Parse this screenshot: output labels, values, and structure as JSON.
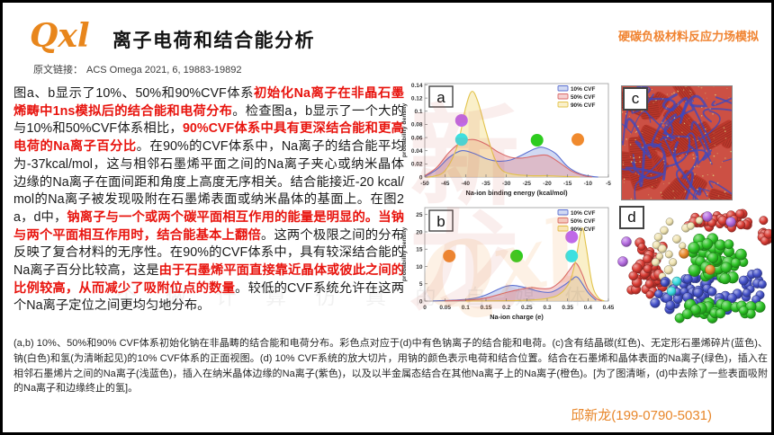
{
  "page": {
    "logo": "Qxl",
    "title": "离子电荷和结合能分析",
    "header_right": "硬碳负极材料反应力场模拟",
    "source_label": "原文链接：",
    "source_value": "ACS Omega 2021, 6, 19883-19892",
    "footer": "邱新龙(199-0790-5031)"
  },
  "watermarks": {
    "stamp": "新\n龙",
    "script": "Qxl",
    "row": "个 做 计 算 仿 真 的 自 媒 体"
  },
  "colors": {
    "brand_orange": "#E8861C",
    "footer_orange": "#E8872B",
    "highlight_red": "#E8140E"
  },
  "body_paragraph": {
    "segments": [
      {
        "red": false,
        "text": "图a、b显示了10%、50%和90%CVF体系"
      },
      {
        "red": true,
        "text": "初始化Na离子在非晶石墨烯畴中1ns模拟后的结合能和电荷分布"
      },
      {
        "red": false,
        "text": "。检查图a，b显示了一个大的与10%和50%CVF体系相比，"
      },
      {
        "red": true,
        "text": "90%CVF体系中具有更深结合能和更高电荷的Na离子百分比"
      },
      {
        "red": false,
        "text": "。在90%的CVF体系中，Na离子的结合能平均为-37kcal/mol，这与相邻石墨烯平面之间的Na离子夹心或纳米晶体边缘的Na离子在面间距和角度上高度无序相关。结合能接近-20 kcal/mol的Na离子被发现吸附在石墨烯表面或纳米晶体的基面上。在图2a，d中，"
      },
      {
        "red": true,
        "text": "钠离子与一个或两个碳平面相互作用的能量是明显的。当钠与两个平面相互作用时，结合能基本上翻倍"
      },
      {
        "red": false,
        "text": "。这两个极限之间的分布反映了复合材料的无序性。在90%的CVF体系中，具有较深结合能的Na离子百分比较高，这是"
      },
      {
        "red": true,
        "text": "由于石墨烯平面直接靠近晶体或彼此之间的比例较高，从而减少了吸附位点的数量"
      },
      {
        "red": false,
        "text": "。较低的CVF系统允许在这两个Na离子定位之间更均匀地分布。"
      }
    ]
  },
  "caption": "(a,b) 10%、50%和90% CVF体系初始化钠在非晶畴的结合能和电荷分布。彩色点对应于(d)中有色钠离子的结合能和电荷。(c)含有结晶碳(红色)、无定形石墨烯碎片(蓝色)、钠(白色)和氢(为清晰起见)的10% CVF体系的正面视图。(d) 10% CVF系统的放大切片，用钠的颜色表示电荷和结合位置。结合在石墨烯和晶体表面的Na离子(绿色)，插入在相邻石墨烯片之间的Na离子(浅蓝色)，插入在纳米晶体边缘的Na离子(紫色)，以及以半金属态结合在其他Na离子上的Na离子(橙色)。[为了图清晰，(d)中去除了一些表面吸附的Na离子和边缘终止的氢]。",
  "chart_data": [
    {
      "id": "a",
      "type": "area",
      "title": "",
      "xlabel": "Na-ion binding energy (kcal/mol)",
      "ylabel": "probability density",
      "xlim": [
        -50,
        -5
      ],
      "ylim": [
        0,
        0.142
      ],
      "xticks": [
        "-50",
        "-45",
        "-40",
        "-35",
        "-30",
        "-25",
        "-20",
        "-15",
        "-10",
        "-5"
      ],
      "yticks": [
        "0",
        "0.02",
        "0.04",
        "0.06",
        "0.08",
        "0.1",
        "0.12",
        "0.14"
      ],
      "legend_position": "top-right",
      "grid": false,
      "series": [
        {
          "name": "10% CVF",
          "color": "#5B6FD0",
          "fill": "rgba(140,160,225,0.40)",
          "x": [
            -50,
            -47,
            -44,
            -41,
            -38,
            -35,
            -32,
            -29,
            -26,
            -23,
            -21,
            -18,
            -15,
            -12,
            -9,
            -7.5
          ],
          "y": [
            0.001,
            0.012,
            0.03,
            0.04,
            0.036,
            0.028,
            0.024,
            0.026,
            0.034,
            0.043,
            0.045,
            0.036,
            0.016,
            0.005,
            0.001,
            0
          ]
        },
        {
          "name": "50% CVF",
          "color": "#D96A6A",
          "fill": "rgba(233,150,150,0.45)",
          "x": [
            -50,
            -47,
            -44,
            -41,
            -38,
            -35,
            -32,
            -29,
            -26,
            -23,
            -20,
            -17,
            -14,
            -11,
            -9
          ],
          "y": [
            0.002,
            0.015,
            0.038,
            0.053,
            0.057,
            0.05,
            0.038,
            0.03,
            0.029,
            0.032,
            0.033,
            0.022,
            0.009,
            0.002,
            0
          ]
        },
        {
          "name": "90% CVF",
          "color": "#E2C34B",
          "fill": "rgba(247,230,165,0.60)",
          "x": [
            -50,
            -48,
            -45,
            -42,
            -40,
            -38.5,
            -37,
            -35,
            -33,
            -31,
            -28,
            -24,
            -20,
            -16,
            -12
          ],
          "y": [
            0,
            0.001,
            0.01,
            0.048,
            0.105,
            0.13,
            0.115,
            0.07,
            0.03,
            0.01,
            0.004,
            0.002,
            0.002,
            0.001,
            0
          ]
        }
      ],
      "dots": [
        {
          "color": "#C069E8",
          "x": -41,
          "y": 0.086
        },
        {
          "color": "#3EE0E0",
          "x": -41,
          "y": 0.057
        },
        {
          "color": "#2ECC1F",
          "x": -22.5,
          "y": 0.056
        },
        {
          "color": "#F08A2E",
          "x": -12.5,
          "y": 0.057
        }
      ]
    },
    {
      "id": "b",
      "type": "area",
      "title": "",
      "xlabel": "Na-ion charge (e)",
      "ylabel": "probability density",
      "xlim": [
        0,
        0.45
      ],
      "ylim": [
        0,
        27
      ],
      "xticks": [
        "0",
        "0.05",
        "0.1",
        "0.15",
        "0.2",
        "0.25",
        "0.3",
        "0.35",
        "0.4",
        "0.45"
      ],
      "yticks": [
        "0",
        "5",
        "10",
        "15",
        "20",
        "25"
      ],
      "legend_position": "top-right",
      "grid": false,
      "series": [
        {
          "name": "10% CVF",
          "color": "#5B6FD0",
          "fill": "rgba(140,160,225,0.40)",
          "x": [
            0.02,
            0.08,
            0.12,
            0.15,
            0.18,
            0.2,
            0.22,
            0.25,
            0.28,
            0.31,
            0.34,
            0.36,
            0.375,
            0.4,
            0.42
          ],
          "y": [
            0.05,
            0.3,
            0.8,
            1.8,
            3.4,
            4.3,
            4.5,
            3.8,
            2.8,
            2.6,
            4.5,
            6.2,
            6.8,
            2.5,
            0.2
          ]
        },
        {
          "name": "50% CVF",
          "color": "#D96A6A",
          "fill": "rgba(233,150,150,0.45)",
          "x": [
            0.05,
            0.12,
            0.16,
            0.2,
            0.23,
            0.26,
            0.285,
            0.31,
            0.335,
            0.355,
            0.37,
            0.385,
            0.4,
            0.42,
            0.435
          ],
          "y": [
            0.05,
            0.4,
            1.2,
            2.5,
            3.3,
            3.9,
            3.6,
            3.8,
            6.0,
            9.0,
            11.0,
            8.0,
            3.5,
            0.8,
            0.05
          ]
        },
        {
          "name": "90% CVF",
          "color": "#E2C34B",
          "fill": "rgba(247,230,165,0.60)",
          "x": [
            0.1,
            0.2,
            0.26,
            0.3,
            0.33,
            0.355,
            0.37,
            0.385,
            0.395,
            0.41,
            0.425,
            0.44
          ],
          "y": [
            0.02,
            0.1,
            0.3,
            0.8,
            2.0,
            5.5,
            12.0,
            21.0,
            16.0,
            5.0,
            1.0,
            0.05
          ]
        }
      ],
      "dots": [
        {
          "color": "#F08A2E",
          "x": 0.06,
          "y": 13
        },
        {
          "color": "#2ECC1F",
          "x": 0.225,
          "y": 13
        },
        {
          "color": "#C069E8",
          "x": 0.36,
          "y": 18.5
        },
        {
          "color": "#3EE0E0",
          "x": 0.36,
          "y": 13
        }
      ]
    }
  ],
  "figures": {
    "c": {
      "label": "c",
      "colors": {
        "base": "#CC5044",
        "domain": "#BA362A",
        "stripe": "#8E2B20",
        "vein": "#3848C4",
        "speckle": "#D9C87A"
      }
    },
    "d": {
      "label": "d",
      "colors": {
        "red": "#D93B33",
        "blue": "#4350C8",
        "green": "#2BC224",
        "yellow": "#EFE3B0",
        "purple": "#B46BE0",
        "orange": "#E8882A",
        "cyan": "#39DCE0"
      }
    }
  }
}
